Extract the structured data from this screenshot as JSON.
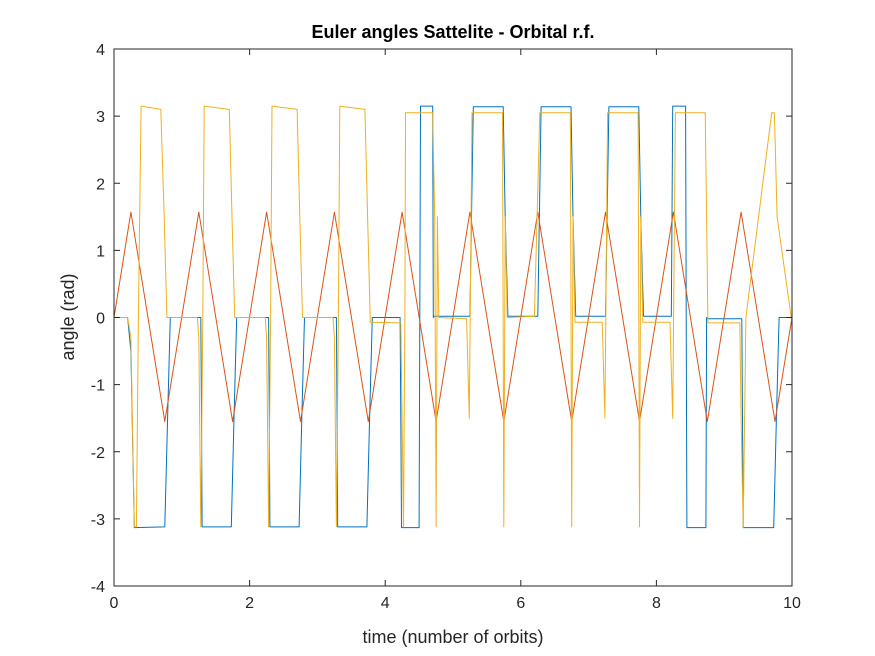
{
  "chart_data": {
    "type": "line",
    "title": "Euler angles Sattelite - Orbital r.f.",
    "xlabel": "time (number of orbits)",
    "ylabel": "angle (rad)",
    "xlim": [
      0,
      10
    ],
    "ylim": [
      -4,
      4
    ],
    "xticks": [
      "0",
      "2",
      "4",
      "6",
      "8",
      "10"
    ],
    "yticks": [
      "-4",
      "-3",
      "-2",
      "-1",
      "0",
      "1",
      "2",
      "3",
      "4"
    ],
    "grid": false,
    "legend": "none",
    "series": [
      {
        "color": "#0072BD",
        "x": [
          0,
          0.2,
          0.25,
          0.3,
          0.75,
          0.79,
          0.83,
          1.28,
          1.29,
          1.3,
          1.73,
          1.77,
          1.81,
          2.28,
          2.29,
          2.3,
          2.73,
          2.77,
          2.81,
          3.28,
          3.29,
          3.3,
          3.73,
          3.77,
          3.81,
          4.22,
          4.23,
          4.24,
          4.5,
          4.51,
          4.52,
          4.7,
          4.71,
          4.72,
          5.25,
          5.3,
          5.74,
          5.77,
          5.81,
          6.25,
          6.3,
          6.74,
          6.77,
          6.81,
          7.25,
          7.3,
          7.74,
          7.77,
          7.81,
          8.22,
          8.23,
          8.24,
          8.43,
          8.44,
          8.45,
          8.73,
          8.74,
          8.76,
          9.26,
          9.27,
          9.28,
          9.73,
          9.77,
          9.81,
          10
        ],
        "y": [
          0,
          0,
          -0.5,
          -3.13,
          -3.12,
          -1.5,
          0,
          0,
          -1.5,
          -3.12,
          -3.12,
          -1.5,
          0,
          0,
          -1.5,
          -3.12,
          -3.12,
          -1.5,
          0,
          0,
          -1.5,
          -3.12,
          -3.12,
          -1.5,
          0,
          0,
          -1.5,
          -3.13,
          -3.13,
          0,
          3.15,
          3.15,
          0,
          0.02,
          0.02,
          3.14,
          3.14,
          1.5,
          0.02,
          0.02,
          3.14,
          3.14,
          1.5,
          0.02,
          0.02,
          3.14,
          3.14,
          1.5,
          0.02,
          0.02,
          1.5,
          3.15,
          3.15,
          0,
          -3.13,
          -3.13,
          0,
          -0.02,
          -0.02,
          -1.5,
          -3.13,
          -3.13,
          -1.5,
          0,
          0
        ]
      },
      {
        "color": "#D95319",
        "x": [
          0,
          0.25,
          0.75,
          1.25,
          1.75,
          2.25,
          2.75,
          3.25,
          3.75,
          4.25,
          4.75,
          5.25,
          5.75,
          6.25,
          6.75,
          7.25,
          7.75,
          8.25,
          8.75,
          9.25,
          9.75,
          10
        ],
        "y": [
          0,
          1.57,
          -1.55,
          1.57,
          -1.55,
          1.57,
          -1.55,
          1.57,
          -1.55,
          1.57,
          -1.55,
          1.57,
          -1.55,
          1.57,
          -1.55,
          1.57,
          -1.55,
          1.57,
          -1.55,
          1.57,
          -1.55,
          0
        ]
      },
      {
        "color": "#EDB120",
        "x": [
          0,
          0.2,
          0.25,
          0.3,
          0.33,
          0.36,
          0.4,
          0.69,
          0.74,
          0.78,
          1.23,
          1.25,
          1.28,
          1.31,
          1.33,
          1.7,
          1.74,
          1.78,
          2.23,
          2.25,
          2.28,
          2.31,
          2.33,
          2.7,
          2.74,
          2.78,
          3.23,
          3.25,
          3.28,
          3.31,
          3.33,
          3.7,
          3.74,
          3.78,
          4.23,
          4.25,
          4.27,
          4.28,
          4.29,
          4.3,
          4.7,
          4.73,
          4.75,
          4.77,
          4.79,
          5.2,
          5.24,
          5.28,
          5.73,
          5.75,
          5.77,
          5.8,
          6.2,
          6.24,
          6.28,
          6.73,
          6.75,
          6.77,
          6.8,
          7.2,
          7.24,
          7.28,
          7.73,
          7.75,
          7.77,
          7.8,
          8.2,
          8.24,
          8.28,
          8.72,
          8.74,
          8.76,
          9.23,
          9.25,
          9.28,
          9.32,
          9.7,
          9.74,
          9.78,
          10
        ],
        "y": [
          0,
          0,
          -0.3,
          -3.12,
          -3.12,
          0,
          3.15,
          3.1,
          1.5,
          0,
          0,
          -0.3,
          -3.12,
          0,
          3.15,
          3.1,
          1.5,
          0,
          0,
          -0.3,
          -3.12,
          0,
          3.15,
          3.1,
          1.5,
          0,
          0,
          -0.3,
          -3.12,
          0,
          3.15,
          3.1,
          1.5,
          -0.07,
          -0.08,
          -1.5,
          -3.12,
          -1.5,
          0,
          3.05,
          3.05,
          1.5,
          -3.12,
          1.5,
          0,
          -0.02,
          -1.5,
          3.05,
          3.05,
          -3.12,
          1.5,
          0,
          0.02,
          1.5,
          3.05,
          3.05,
          -3.12,
          1.5,
          -0.07,
          -0.07,
          -1.5,
          3.05,
          3.05,
          -3.12,
          1.5,
          -0.07,
          -0.07,
          -1.5,
          3.05,
          3.05,
          1.5,
          -0.08,
          -0.08,
          -1.5,
          -3.13,
          0,
          3.05,
          3.05,
          1.5,
          -0.08
        ]
      }
    ]
  }
}
